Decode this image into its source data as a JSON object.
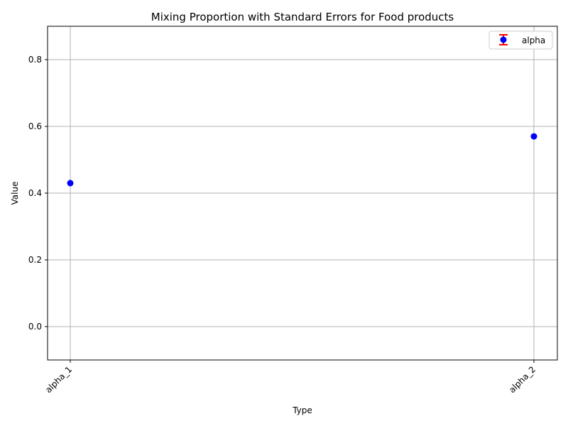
{
  "chart_data": {
    "type": "scatter",
    "title": "Mixing Proportion with Standard Errors for Food products",
    "xlabel": "Type",
    "ylabel": "Value",
    "categories": [
      "alpha_1",
      "alpha_2"
    ],
    "series": [
      {
        "name": "alpha",
        "values": [
          0.43,
          0.57
        ],
        "errors": [
          0,
          0
        ],
        "marker_color": "#0000ff",
        "error_color": "#ff0000"
      }
    ],
    "ylim": [
      -0.1,
      0.9
    ],
    "yticks": [
      0.0,
      0.2,
      0.4,
      0.6,
      0.8
    ],
    "ytick_labels": [
      "0.0",
      "0.2",
      "0.4",
      "0.6",
      "0.8"
    ],
    "grid": true,
    "legend_position": "top-right"
  }
}
